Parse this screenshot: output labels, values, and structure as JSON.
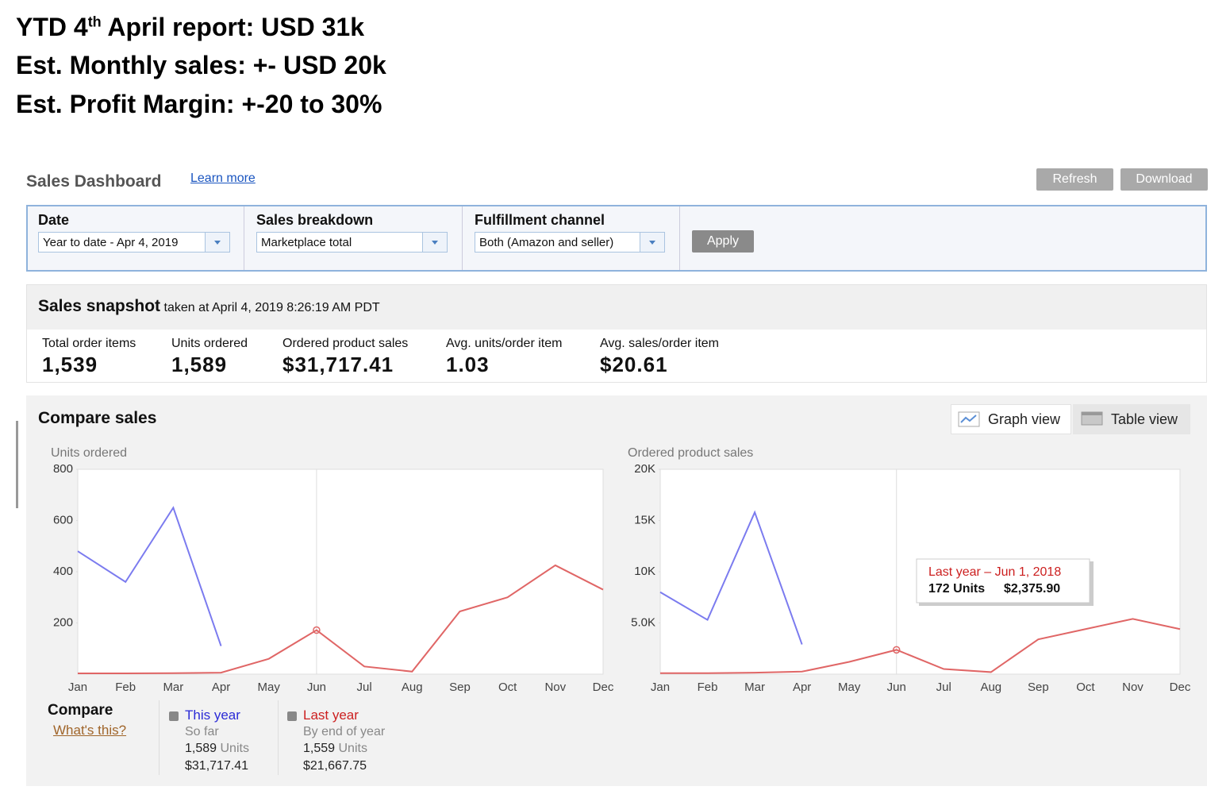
{
  "heading": {
    "lines": [
      {
        "pre": "YTD 4",
        "sup": "th",
        "post": " April report: USD 31k"
      },
      "Est. Monthly sales: +- USD 20k",
      "Est. Profit Margin: +-20 to 30%"
    ]
  },
  "dashboard": {
    "title": "Sales Dashboard",
    "learn_more": "Learn more",
    "buttons": [
      "Refresh",
      "Download"
    ],
    "filters": [
      {
        "label": "Date",
        "value": "Year to date - Apr 4, 2019"
      },
      {
        "label": "Sales breakdown",
        "value": "Marketplace total"
      },
      {
        "label": "Fulfillment channel",
        "value": "Both (Amazon and seller)"
      }
    ],
    "apply": "Apply"
  },
  "snapshot": {
    "title": "Sales snapshot",
    "subtitle": "taken at April 4, 2019 8:26:19 AM PDT",
    "metrics": [
      {
        "label": "Total order items",
        "value": "1,539"
      },
      {
        "label": "Units ordered",
        "value": "1,589"
      },
      {
        "label": "Ordered product sales",
        "value": "$31,717.41"
      },
      {
        "label": "Avg. units/order item",
        "value": "1.03"
      },
      {
        "label": "Avg. sales/order item",
        "value": "$20.61"
      }
    ]
  },
  "compare": {
    "title": "Compare sales",
    "tabs": [
      "Graph view",
      "Table view"
    ],
    "legend_title": "Compare",
    "whats_this": "What's this?",
    "this_year": {
      "name": "This year",
      "period": "So far",
      "units": "1,589",
      "units_label": "Units",
      "sales": "$31,717.41"
    },
    "last_year": {
      "name": "Last year",
      "period": "By end of year",
      "units": "1,559",
      "units_label": "Units",
      "sales": "$21,667.75"
    }
  },
  "chart_data": [
    {
      "type": "line",
      "y_label": "Units ordered",
      "categories": [
        "Jan",
        "Feb",
        "Mar",
        "Apr",
        "May",
        "Jun",
        "Jul",
        "Aug",
        "Sep",
        "Oct",
        "Nov",
        "Dec"
      ],
      "ylim": [
        0,
        800
      ],
      "yticks": [
        200,
        400,
        600,
        800
      ],
      "series": [
        {
          "name": "This year",
          "color": "#7b7bef",
          "values": [
            480,
            360,
            650,
            110,
            null,
            null,
            null,
            null,
            null,
            null,
            null,
            null
          ]
        },
        {
          "name": "Last year",
          "color": "#e06666",
          "values": [
            3,
            3,
            4,
            6,
            60,
            172,
            30,
            10,
            245,
            300,
            425,
            330
          ]
        }
      ]
    },
    {
      "type": "line",
      "y_label": "Ordered product sales",
      "categories": [
        "Jan",
        "Feb",
        "Mar",
        "Apr",
        "May",
        "Jun",
        "Jul",
        "Aug",
        "Sep",
        "Oct",
        "Nov",
        "Dec"
      ],
      "ylim": [
        0,
        20000
      ],
      "yticks": [
        {
          "value": 5000,
          "label": "5.0K"
        },
        {
          "value": 10000,
          "label": "10K"
        },
        {
          "value": 15000,
          "label": "15K"
        },
        {
          "value": 20000,
          "label": "20K"
        }
      ],
      "series": [
        {
          "name": "This year",
          "color": "#7b7bef",
          "values": [
            8000,
            5300,
            15800,
            2900,
            null,
            null,
            null,
            null,
            null,
            null,
            null,
            null
          ]
        },
        {
          "name": "Last year",
          "color": "#e06666",
          "values": [
            100,
            100,
            150,
            250,
            1200,
            2376,
            500,
            200,
            3400,
            4400,
            5400,
            4400
          ]
        }
      ],
      "tooltip": {
        "title": "Last year – Jun 1, 2018",
        "units": "172 Units",
        "sales": "$2,375.90"
      }
    }
  ]
}
